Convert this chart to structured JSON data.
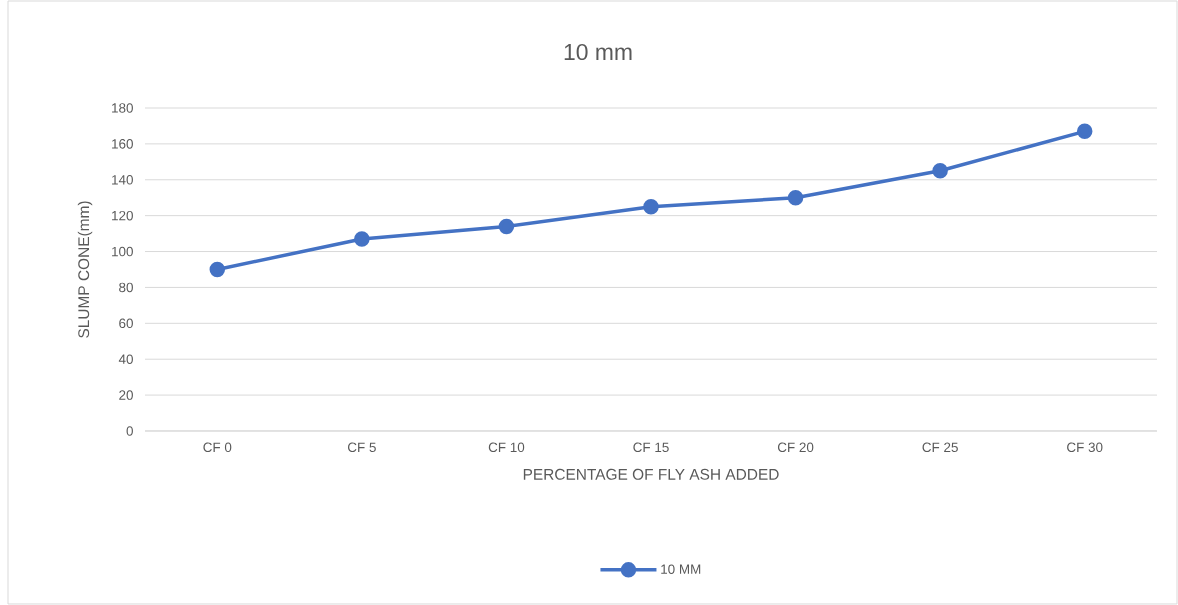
{
  "chart_data": {
    "type": "line",
    "title": "10 mm",
    "xlabel": "PERCENTAGE OF FLY ASH ADDED",
    "ylabel": "SLUMP CONE(mm)",
    "categories": [
      "CF 0",
      "CF 5",
      "CF 10",
      "CF 15",
      "CF 20",
      "CF 25",
      "CF 30"
    ],
    "series": [
      {
        "name": "10 MM",
        "color": "#4472c4",
        "values": [
          90,
          107,
          114,
          125,
          130,
          145,
          167
        ]
      }
    ],
    "ylim": [
      0,
      180
    ],
    "yticks": [
      0,
      20,
      40,
      60,
      80,
      100,
      120,
      140,
      160,
      180
    ],
    "grid": "y",
    "legend": "bottom",
    "marker": "circle",
    "line_style": "solid"
  }
}
